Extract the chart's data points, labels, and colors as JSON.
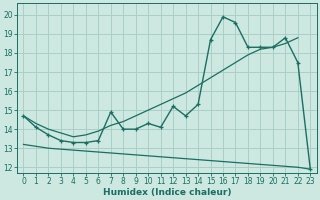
{
  "xlabel": "Humidex (Indice chaleur)",
  "bg_color": "#cce8e0",
  "line_color": "#1a6e62",
  "grid_color": "#aacec6",
  "xlim": [
    -0.5,
    23.5
  ],
  "ylim": [
    11.7,
    20.6
  ],
  "x_ticks": [
    0,
    1,
    2,
    3,
    4,
    5,
    6,
    7,
    8,
    9,
    10,
    11,
    12,
    13,
    14,
    15,
    16,
    17,
    18,
    19,
    20,
    21,
    22,
    23
  ],
  "y_ticks": [
    12,
    13,
    14,
    15,
    16,
    17,
    18,
    19,
    20
  ],
  "curve1_x": [
    0,
    1,
    2,
    3,
    4,
    5,
    6,
    7,
    8,
    9,
    10,
    11,
    12,
    13,
    14,
    15,
    16,
    17,
    18,
    19,
    20,
    21,
    22,
    23
  ],
  "curve1_y": [
    14.7,
    14.1,
    13.7,
    13.4,
    13.3,
    13.3,
    13.4,
    14.9,
    14.0,
    14.0,
    14.3,
    14.1,
    15.2,
    14.7,
    15.3,
    18.7,
    19.9,
    19.6,
    18.3,
    18.3,
    18.3,
    18.8,
    17.5,
    11.9
  ],
  "curve2_x": [
    0,
    1,
    2,
    3,
    4,
    5,
    6,
    7,
    8,
    9,
    10,
    11,
    12,
    13,
    14,
    15,
    16,
    17,
    18,
    19,
    20,
    21,
    22
  ],
  "curve2_y": [
    14.7,
    14.3,
    14.0,
    13.8,
    13.6,
    13.7,
    13.9,
    14.2,
    14.4,
    14.7,
    15.0,
    15.3,
    15.6,
    15.9,
    16.3,
    16.7,
    17.1,
    17.5,
    17.9,
    18.2,
    18.3,
    18.5,
    18.8
  ],
  "curve3_x": [
    0,
    1,
    2,
    3,
    4,
    5,
    6,
    7,
    8,
    9,
    10,
    11,
    12,
    13,
    14,
    15,
    16,
    17,
    18,
    19,
    20,
    21,
    22,
    23
  ],
  "curve3_y": [
    13.2,
    13.1,
    13.0,
    12.95,
    12.9,
    12.85,
    12.8,
    12.75,
    12.7,
    12.65,
    12.6,
    12.55,
    12.5,
    12.45,
    12.4,
    12.35,
    12.3,
    12.25,
    12.2,
    12.15,
    12.1,
    12.05,
    12.0,
    11.9
  ]
}
